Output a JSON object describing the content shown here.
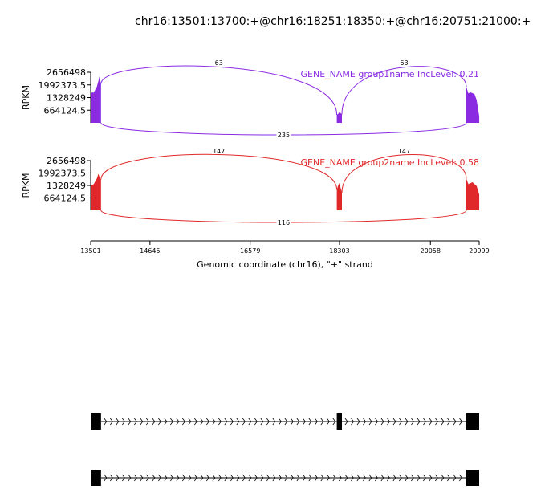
{
  "chart_data": {
    "type": "area",
    "title": "chr16:13501:13700:+@chr16:18251:18350:+@chr16:20751:21000:+",
    "xlabel": "Genomic coordinate (chr16), \"+\" strand",
    "ylabel": "RPKM",
    "xlim": [
      13501,
      20999
    ],
    "x_ticks": [
      "13501",
      "14645",
      "16579",
      "18303",
      "20058",
      "20999"
    ],
    "y_ticks": [
      "2656498",
      "1992373.5",
      "1328249",
      "664124.5"
    ],
    "ylim": [
      0,
      2656498
    ],
    "exons": [
      [
        13501,
        13700
      ],
      [
        18251,
        18350
      ],
      [
        20751,
        21000
      ]
    ],
    "panels": [
      {
        "label": "GENE_NAME group1name IncLevel: 0.21",
        "color": "#8a2be2",
        "junctions": [
          {
            "from": 13700,
            "to": 18251,
            "count": "63",
            "side": "top"
          },
          {
            "from": 18350,
            "to": 20751,
            "count": "63",
            "side": "top"
          },
          {
            "from": 13700,
            "to": 20751,
            "count": "235",
            "side": "bottom"
          }
        ],
        "coverage": [
          {
            "x": [
              13501,
              13530,
              13560,
              13590,
              13620,
              13650,
              13670,
              13690,
              13700
            ],
            "y": [
              1550000,
              1600000,
              1580000,
              1750000,
              1900000,
              2200000,
              2450000,
              2150000,
              2050000
            ]
          },
          {
            "x": [
              18251,
              18280,
              18300,
              18330,
              18350
            ],
            "y": [
              420000,
              480000,
              560000,
              500000,
              450000
            ]
          },
          {
            "x": [
              20751,
              20790,
              20830,
              20870,
              20910,
              20950,
              21000
            ],
            "y": [
              1900000,
              1550000,
              1600000,
              1560000,
              1500000,
              1200000,
              350000
            ]
          }
        ]
      },
      {
        "label": "GENE_NAME group2name IncLevel: 0.58",
        "color": "#e0282a",
        "junctions": [
          {
            "from": 13700,
            "to": 18251,
            "count": "147",
            "side": "top"
          },
          {
            "from": 18350,
            "to": 20751,
            "count": "147",
            "side": "top"
          },
          {
            "from": 13700,
            "to": 20751,
            "count": "116",
            "side": "bottom"
          }
        ],
        "coverage": [
          {
            "x": [
              13501,
              13530,
              13560,
              13590,
              13620,
              13650,
              13680,
              13700
            ],
            "y": [
              1300000,
              1350000,
              1400000,
              1550000,
              1700000,
              1950000,
              1700000,
              1650000
            ]
          },
          {
            "x": [
              18251,
              18280,
              18300,
              18320,
              18350
            ],
            "y": [
              1100000,
              1350000,
              1450000,
              1250000,
              950000
            ]
          },
          {
            "x": [
              20751,
              20790,
              20830,
              20870,
              20910,
              20950,
              21000
            ],
            "y": [
              1700000,
              1400000,
              1450000,
              1500000,
              1400000,
              1300000,
              850000
            ]
          }
        ]
      }
    ],
    "transcripts": [
      {
        "exons": [
          [
            13501,
            13700
          ],
          [
            18251,
            18350
          ],
          [
            20751,
            21000
          ]
        ]
      },
      {
        "exons": [
          [
            13501,
            13700
          ],
          [
            20751,
            21000
          ]
        ]
      }
    ]
  }
}
